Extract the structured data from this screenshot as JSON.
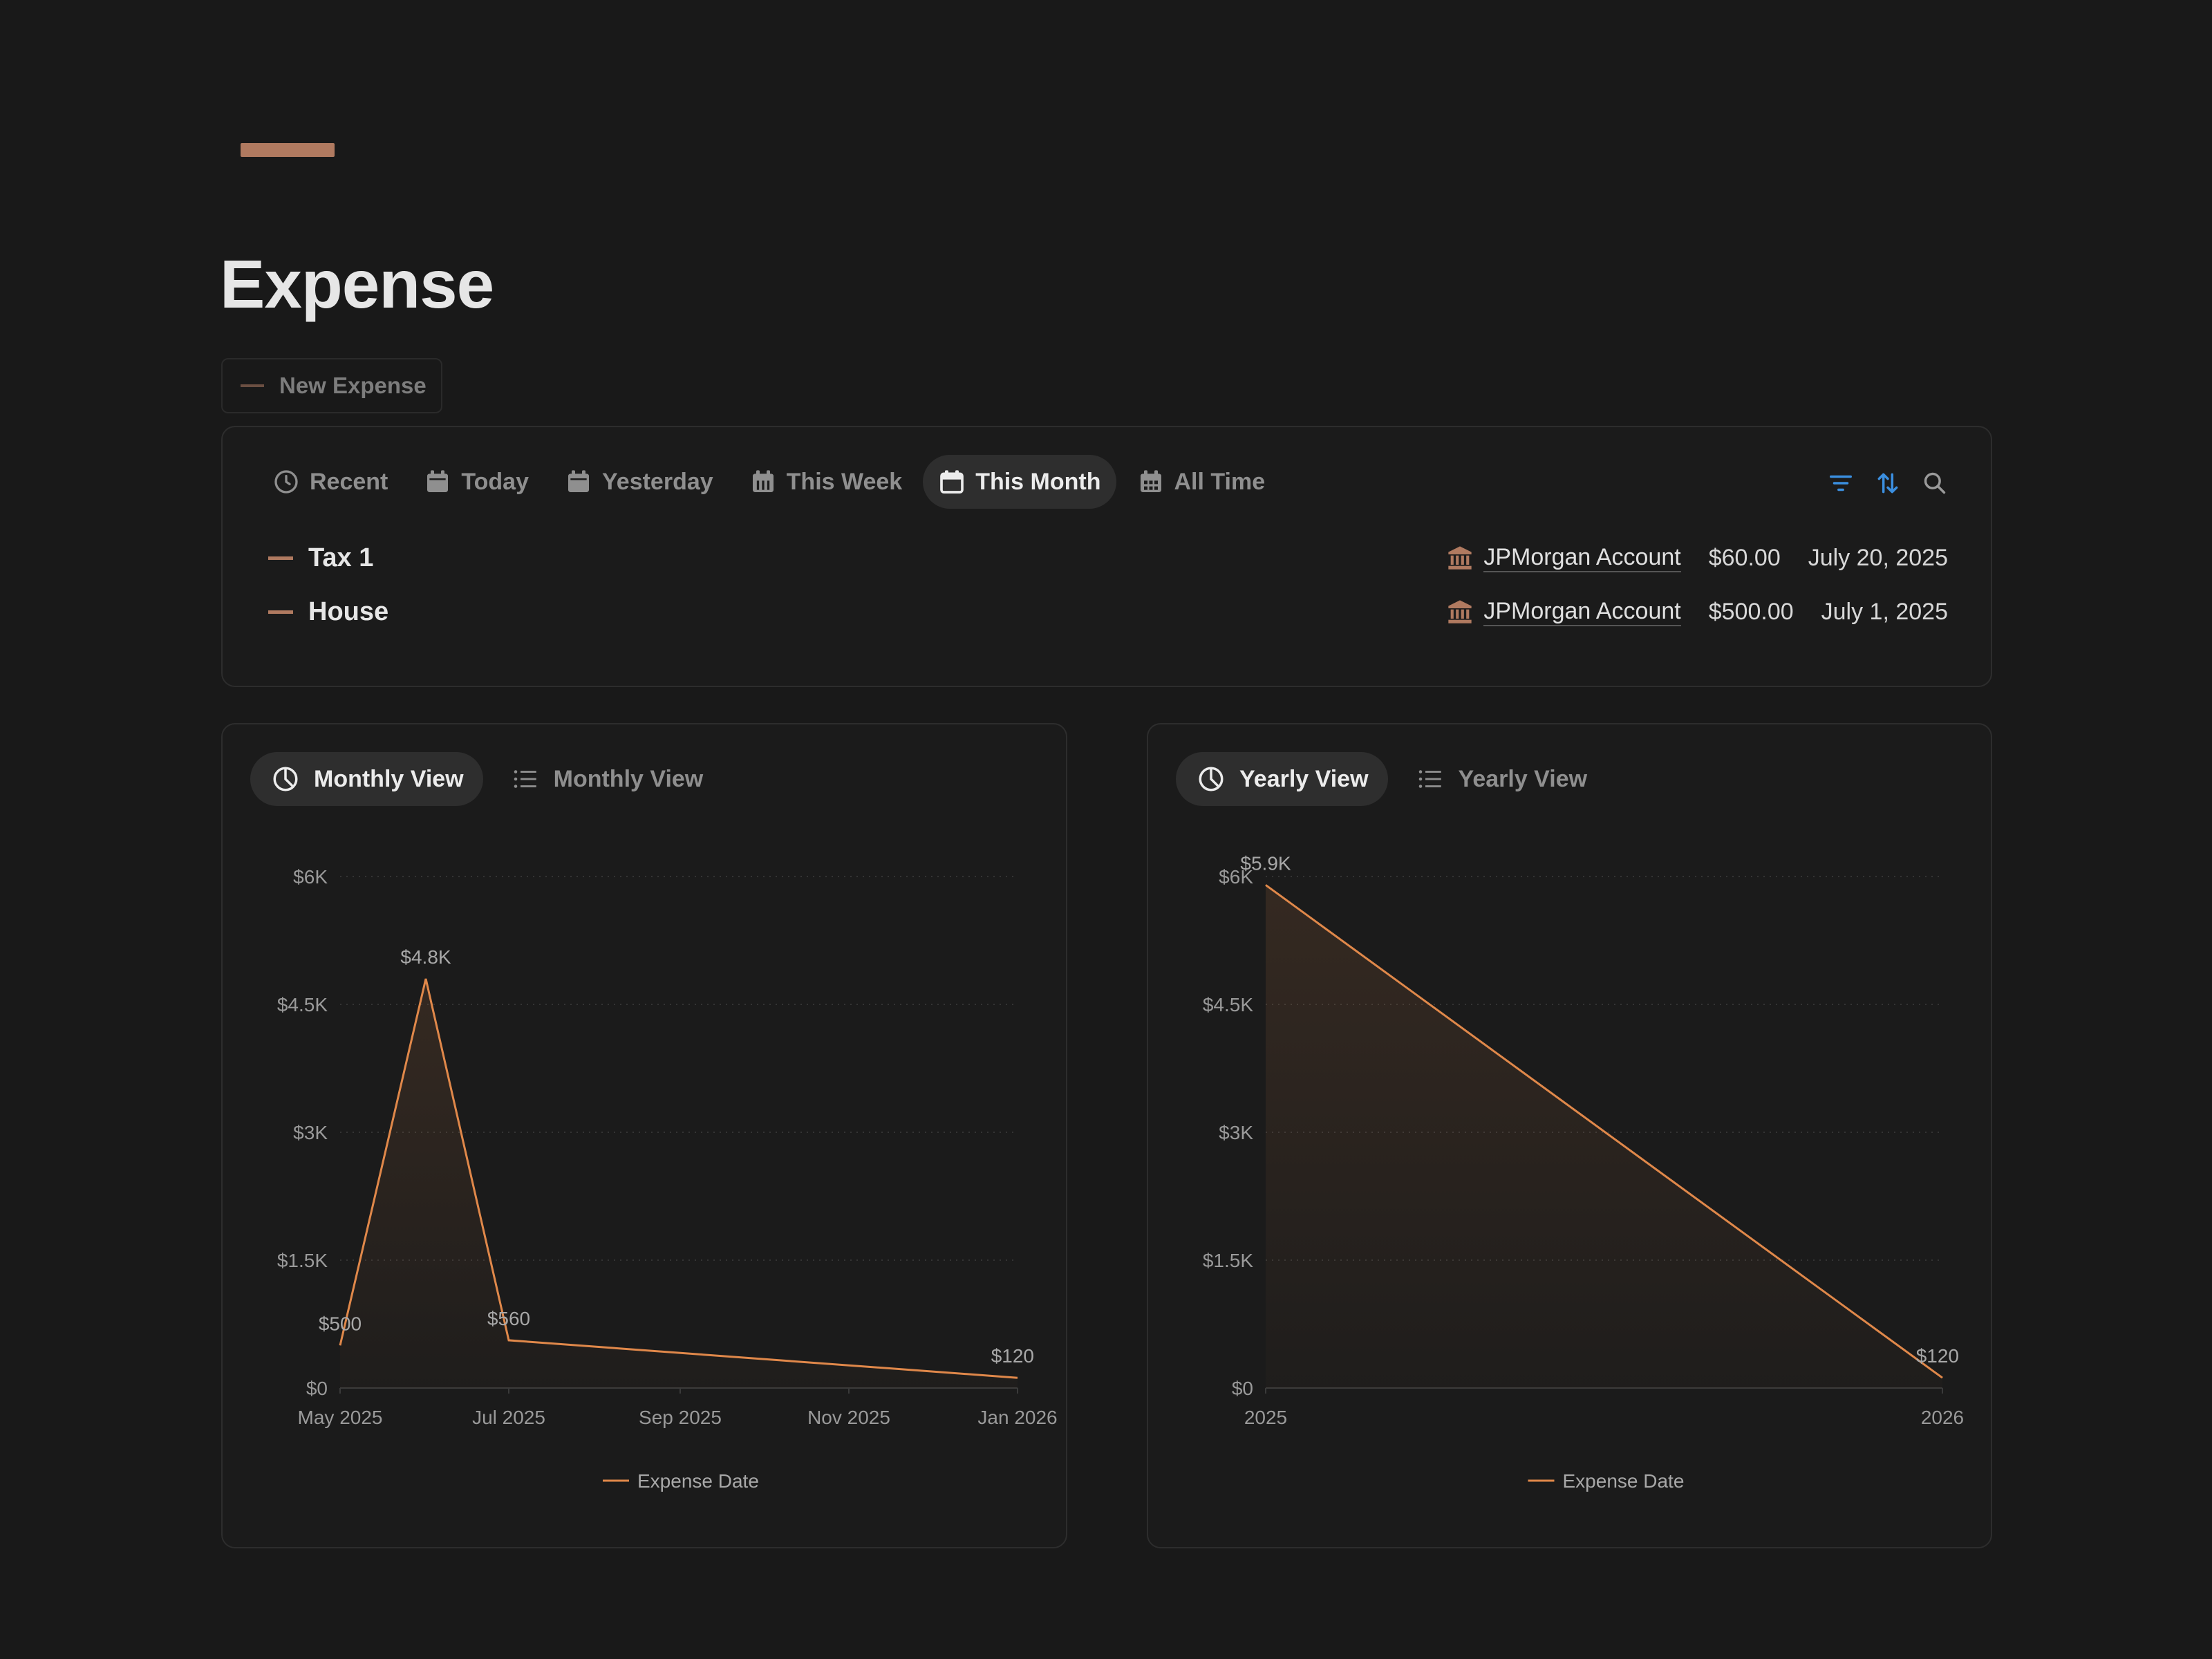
{
  "page": {
    "title": "Expense"
  },
  "new_button": {
    "label": "New Expense"
  },
  "colors": {
    "accent": "#b07a60",
    "line": "#e0884a",
    "tool_blue": "#3b8fe0"
  },
  "tabs": [
    {
      "label": "Recent",
      "icon": "clock-icon"
    },
    {
      "label": "Today",
      "icon": "calendar-icon"
    },
    {
      "label": "Yesterday",
      "icon": "calendar-icon"
    },
    {
      "label": "This Week",
      "icon": "calendar-week-icon"
    },
    {
      "label": "This Month",
      "icon": "calendar-icon",
      "active": true
    },
    {
      "label": "All Time",
      "icon": "calendar-grid-icon"
    }
  ],
  "tools": [
    "filter-icon",
    "sort-icon",
    "search-icon"
  ],
  "entries": [
    {
      "name": "Tax 1",
      "account": "JPMorgan Account",
      "amount": "$60.00",
      "date": "July 20, 2025"
    },
    {
      "name": "House",
      "account": "JPMorgan Account",
      "amount": "$500.00",
      "date": "July 1, 2025"
    }
  ],
  "monthly": {
    "tab_chart": "Monthly View",
    "tab_list": "Monthly View"
  },
  "yearly": {
    "tab_chart": "Yearly View",
    "tab_list": "Yearly View"
  },
  "chart_data": [
    {
      "type": "area",
      "title": "",
      "x": [
        "2025-05-01",
        "2025-06-01",
        "2025-07-01",
        "2026-01-01"
      ],
      "x_ticks": [
        "May 2025",
        "Jul 2025",
        "Sep 2025",
        "Nov 2025",
        "Jan 2026"
      ],
      "series": [
        {
          "name": "Expense Date",
          "values": [
            500,
            4800,
            560,
            120
          ]
        }
      ],
      "data_labels": [
        "$500",
        "$4.8K",
        "$560",
        "$120"
      ],
      "y_ticks": [
        "$0",
        "$1.5K",
        "$3K",
        "$4.5K",
        "$6K"
      ],
      "ylim": [
        0,
        6000
      ],
      "grid": true,
      "legend": "bottom"
    },
    {
      "type": "area",
      "title": "",
      "x": [
        "2025",
        "2026"
      ],
      "x_ticks": [
        "2025",
        "2026"
      ],
      "series": [
        {
          "name": "Expense Date",
          "values": [
            5900,
            120
          ]
        }
      ],
      "data_labels": [
        "$5.9K",
        "$120"
      ],
      "y_ticks": [
        "$0",
        "$1.5K",
        "$3K",
        "$4.5K",
        "$6K"
      ],
      "ylim": [
        0,
        6000
      ],
      "grid": true,
      "legend": "bottom"
    }
  ]
}
